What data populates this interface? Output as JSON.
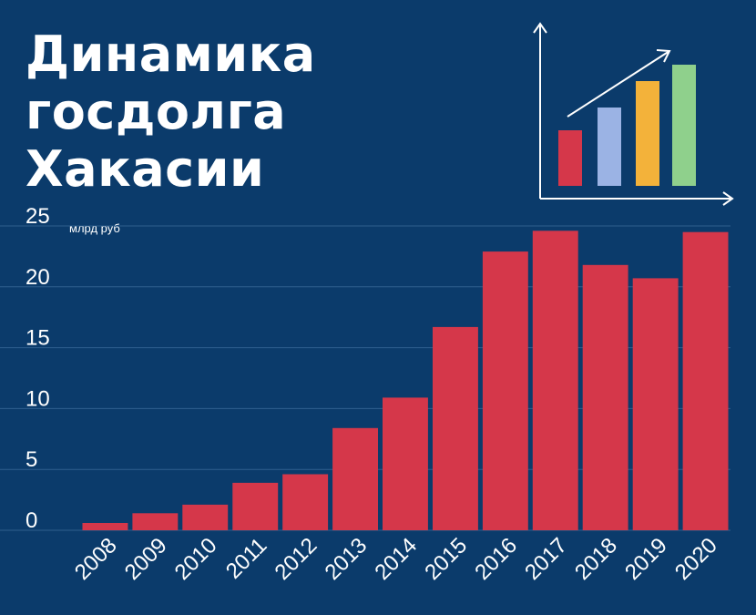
{
  "title_lines": [
    "Динамика",
    "госдолга",
    "Хакасии"
  ],
  "chart_data": {
    "type": "bar",
    "title": "Динамика госдолга Хакасии",
    "ylabel": "",
    "unit": "млрд руб",
    "ylim": [
      0,
      25
    ],
    "yticks": [
      0,
      5,
      10,
      15,
      20,
      25
    ],
    "categories": [
      "2008",
      "2009",
      "2010",
      "2011",
      "2012",
      "2013",
      "2014",
      "2015",
      "2016",
      "2017",
      "2018",
      "2019",
      "2020"
    ],
    "values": [
      0.6,
      1.4,
      2.1,
      3.9,
      4.6,
      8.4,
      10.9,
      16.7,
      22.9,
      24.6,
      21.8,
      20.7,
      24.5
    ],
    "grid": true,
    "colors": {
      "background": "#0b3b6b",
      "bar": "#d5374a",
      "grid": "#2f5f8e",
      "text": "#ffffff"
    }
  },
  "decor_icon": {
    "name": "bar-growth-chart-icon",
    "bar_colors": [
      "#d5374a",
      "#9bb3e4",
      "#f3b23a",
      "#8fd08c"
    ]
  }
}
